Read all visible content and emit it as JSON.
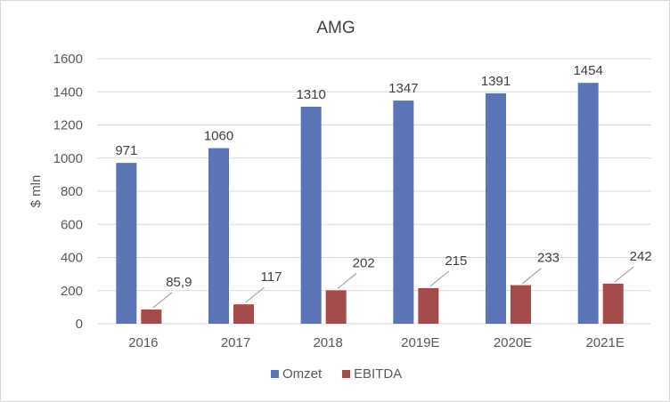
{
  "chart_data": {
    "type": "bar",
    "title": "AMG",
    "ylabel": "$ mln",
    "xlabel": "",
    "categories": [
      "2016",
      "2017",
      "2018",
      "2019E",
      "2020E",
      "2021E"
    ],
    "series": [
      {
        "name": "Omzet",
        "color": "#5b74b8",
        "values": [
          971,
          1060,
          1310,
          1347,
          1391,
          1454
        ],
        "labels": [
          "971",
          "1060",
          "1310",
          "1347",
          "1391",
          "1454"
        ]
      },
      {
        "name": "EBITDA",
        "color": "#a44c4b",
        "values": [
          85.9,
          117,
          202,
          215,
          233,
          242
        ],
        "labels": [
          "85,9",
          "117",
          "202",
          "215",
          "233",
          "242"
        ]
      }
    ],
    "ylim": [
      0,
      1600
    ],
    "yticks": [
      0,
      200,
      400,
      600,
      800,
      1000,
      1200,
      1400,
      1600
    ],
    "grid": true,
    "legend_position": "bottom",
    "gridline_color": "#d9d9d9"
  }
}
